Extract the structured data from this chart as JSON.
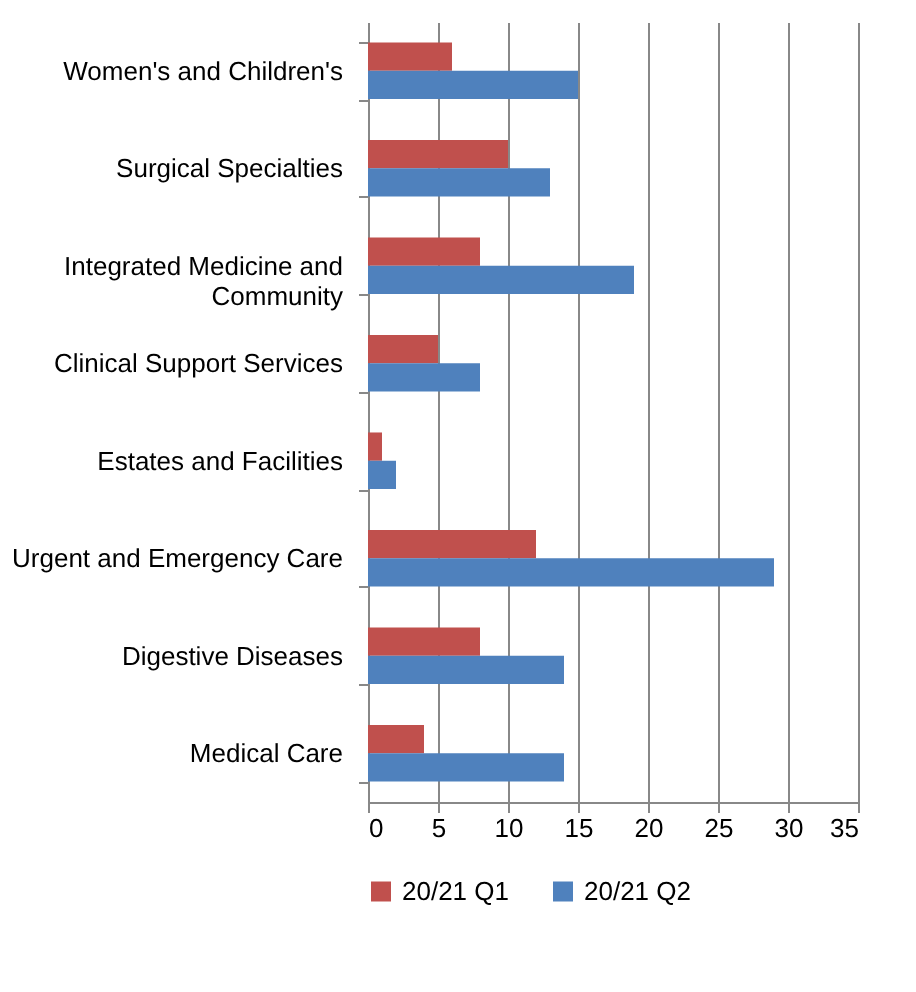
{
  "chart_data": {
    "type": "bar",
    "orientation": "horizontal",
    "categories": [
      "Women's and Children's",
      "Surgical Specialties",
      "Integrated Medicine and Community",
      "Clinical Support Services",
      "Estates and Facilities",
      "Urgent and Emergency Care",
      "Digestive Diseases",
      "Medical Care"
    ],
    "series": [
      {
        "name": "20/21 Q1",
        "color": "#c0504d",
        "values": [
          6,
          10,
          8,
          5,
          1,
          12,
          8,
          4
        ]
      },
      {
        "name": "20/21 Q2",
        "color": "#4f81bd",
        "values": [
          15,
          13,
          19,
          8,
          2,
          29,
          14,
          14
        ]
      }
    ],
    "xlim": [
      0,
      35
    ],
    "xticks": [
      0,
      5,
      10,
      15,
      20,
      25,
      30,
      35
    ],
    "grid": "x",
    "legend": "bottom"
  }
}
